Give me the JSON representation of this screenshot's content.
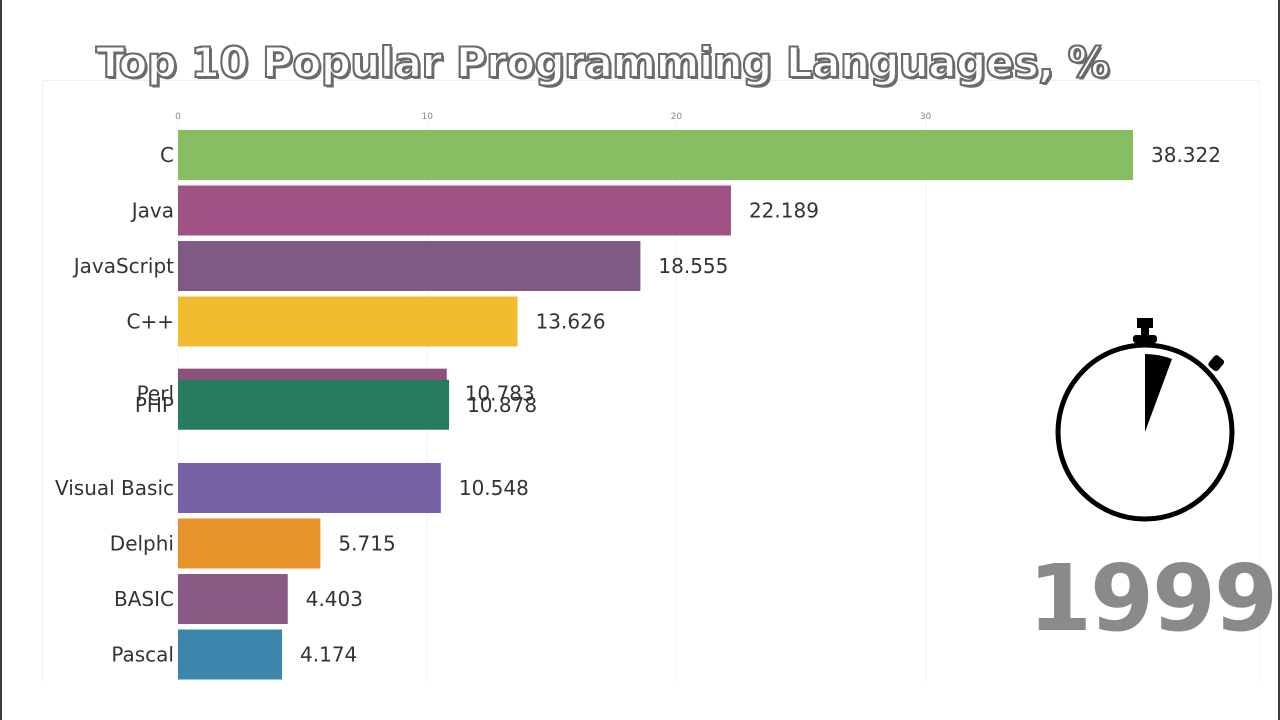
{
  "title": "Top 10 Popular Programming Languages, %",
  "year": "1999",
  "icons": {
    "timer": "stopwatch-icon"
  },
  "chart_data": {
    "type": "bar",
    "orientation": "horizontal",
    "title": "Top 10 Popular Programming Languages, %",
    "xlim": [
      0,
      38.322
    ],
    "x_ticks": [
      0,
      10,
      20,
      30
    ],
    "grid": true,
    "bars": [
      {
        "category": "C",
        "value": 38.322,
        "value_label": "38.322",
        "color": "#86be62",
        "slot": 0
      },
      {
        "category": "Java",
        "value": 22.189,
        "value_label": "22.189",
        "color": "#a05285",
        "slot": 1
      },
      {
        "category": "JavaScript",
        "value": 18.555,
        "value_label": "18.555",
        "color": "#815a84",
        "slot": 2
      },
      {
        "category": "C++",
        "value": 13.626,
        "value_label": "13.626",
        "color": "#f1bc2f",
        "slot": 3
      },
      {
        "category": "Perl",
        "value": 10.783,
        "value_label": "10.783",
        "color": "#8f4f7b",
        "slot": 4.3
      },
      {
        "category": "PHP",
        "value": 10.878,
        "value_label": "10.878",
        "color": "#257d5e",
        "slot": 4.5
      },
      {
        "category": "Visual Basic",
        "value": 10.548,
        "value_label": "10.548",
        "color": "#7760a6",
        "slot": 6
      },
      {
        "category": "Delphi",
        "value": 5.715,
        "value_label": "5.715",
        "color": "#e8922a",
        "slot": 7
      },
      {
        "category": "BASIC",
        "value": 4.403,
        "value_label": "4.403",
        "color": "#8a5a84",
        "slot": 8
      },
      {
        "category": "Pascal",
        "value": 4.174,
        "value_label": "4.174",
        "color": "#3c86ad",
        "slot": 9
      }
    ]
  }
}
